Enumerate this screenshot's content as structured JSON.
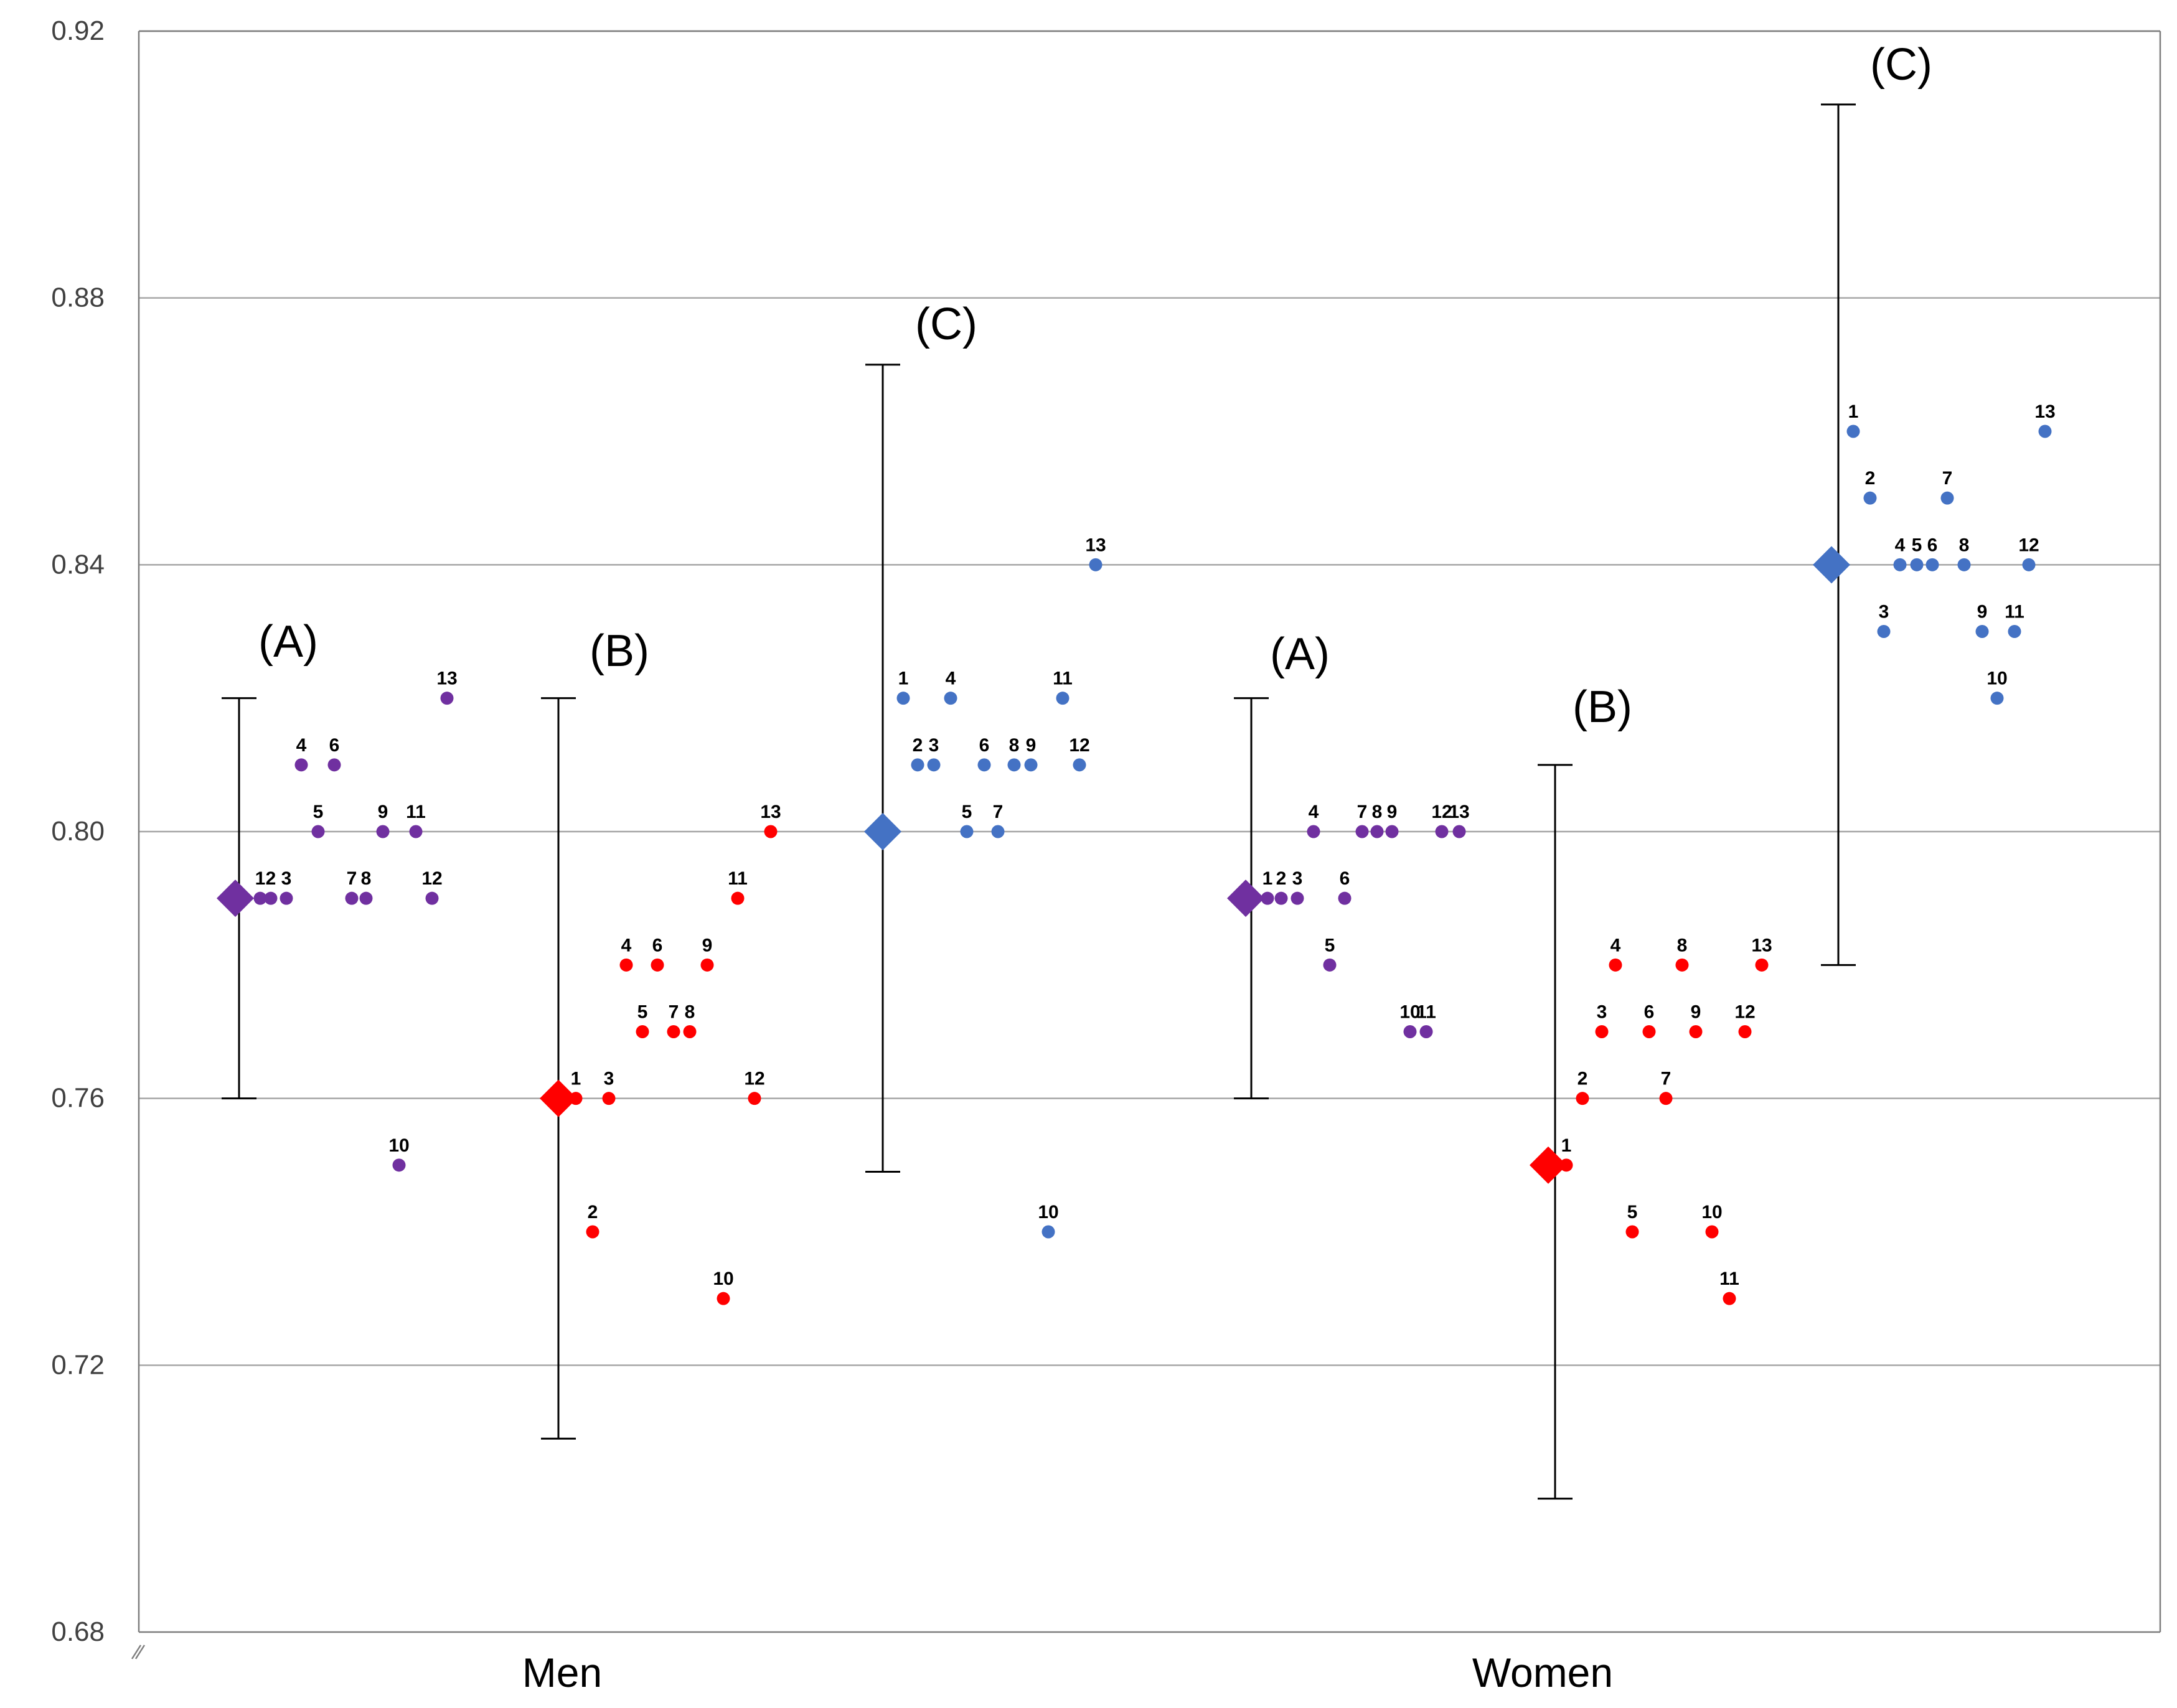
{
  "chart_data": {
    "type": "scatter",
    "title": "",
    "xlabel": "",
    "ylabel": "",
    "ylim": [
      0.68,
      0.92
    ],
    "yticks": [
      "0.68",
      "0.72",
      "0.76",
      "0.80",
      "0.84",
      "0.88",
      "0.92"
    ],
    "grid": true,
    "categories": [
      "Men",
      "Women"
    ],
    "colors": {
      "A": "#7030A0",
      "B": "#FF0000",
      "C": "#4472C4"
    },
    "groups": [
      {
        "category": "Men",
        "label": "(A)",
        "key": "A",
        "mean": 0.79,
        "error_low": 0.76,
        "error_high": 0.82,
        "points": [
          {
            "n": "1",
            "v": 0.79
          },
          {
            "n": "2",
            "v": 0.79
          },
          {
            "n": "3",
            "v": 0.79
          },
          {
            "n": "4",
            "v": 0.81
          },
          {
            "n": "5",
            "v": 0.8
          },
          {
            "n": "6",
            "v": 0.81
          },
          {
            "n": "7",
            "v": 0.79
          },
          {
            "n": "8",
            "v": 0.79
          },
          {
            "n": "9",
            "v": 0.8
          },
          {
            "n": "10",
            "v": 0.75
          },
          {
            "n": "11",
            "v": 0.8
          },
          {
            "n": "12",
            "v": 0.79
          },
          {
            "n": "13",
            "v": 0.82
          }
        ]
      },
      {
        "category": "Men",
        "label": "(B)",
        "key": "B",
        "mean": 0.76,
        "error_low": 0.709,
        "error_high": 0.82,
        "points": [
          {
            "n": "1",
            "v": 0.76
          },
          {
            "n": "2",
            "v": 0.74
          },
          {
            "n": "3",
            "v": 0.76
          },
          {
            "n": "4",
            "v": 0.78
          },
          {
            "n": "5",
            "v": 0.77
          },
          {
            "n": "6",
            "v": 0.78
          },
          {
            "n": "7",
            "v": 0.77
          },
          {
            "n": "8",
            "v": 0.77
          },
          {
            "n": "9",
            "v": 0.78
          },
          {
            "n": "10",
            "v": 0.73
          },
          {
            "n": "11",
            "v": 0.79
          },
          {
            "n": "12",
            "v": 0.76
          },
          {
            "n": "13",
            "v": 0.8
          }
        ]
      },
      {
        "category": "Men",
        "label": "(C)",
        "key": "C",
        "mean": 0.8,
        "error_low": 0.749,
        "error_high": 0.87,
        "points": [
          {
            "n": "1",
            "v": 0.82
          },
          {
            "n": "2",
            "v": 0.81
          },
          {
            "n": "3",
            "v": 0.81
          },
          {
            "n": "4",
            "v": 0.82
          },
          {
            "n": "5",
            "v": 0.8
          },
          {
            "n": "6",
            "v": 0.81
          },
          {
            "n": "7",
            "v": 0.8
          },
          {
            "n": "8",
            "v": 0.81
          },
          {
            "n": "9",
            "v": 0.81
          },
          {
            "n": "10",
            "v": 0.74
          },
          {
            "n": "11",
            "v": 0.82
          },
          {
            "n": "12",
            "v": 0.81
          },
          {
            "n": "13",
            "v": 0.84
          }
        ]
      },
      {
        "category": "Women",
        "label": "(A)",
        "key": "A",
        "mean": 0.79,
        "error_low": 0.76,
        "error_high": 0.82,
        "points": [
          {
            "n": "1",
            "v": 0.79
          },
          {
            "n": "2",
            "v": 0.79
          },
          {
            "n": "3",
            "v": 0.79
          },
          {
            "n": "4",
            "v": 0.8
          },
          {
            "n": "5",
            "v": 0.78
          },
          {
            "n": "6",
            "v": 0.79
          },
          {
            "n": "7",
            "v": 0.8
          },
          {
            "n": "8",
            "v": 0.8
          },
          {
            "n": "9",
            "v": 0.8
          },
          {
            "n": "10",
            "v": 0.77
          },
          {
            "n": "11",
            "v": 0.77
          },
          {
            "n": "12",
            "v": 0.8
          },
          {
            "n": "13",
            "v": 0.8
          }
        ]
      },
      {
        "category": "Women",
        "label": "(B)",
        "key": "B",
        "mean": 0.75,
        "error_low": 0.7,
        "error_high": 0.81,
        "points": [
          {
            "n": "1",
            "v": 0.75
          },
          {
            "n": "2",
            "v": 0.76
          },
          {
            "n": "3",
            "v": 0.77
          },
          {
            "n": "4",
            "v": 0.78
          },
          {
            "n": "5",
            "v": 0.74
          },
          {
            "n": "6",
            "v": 0.77
          },
          {
            "n": "7",
            "v": 0.76
          },
          {
            "n": "8",
            "v": 0.78
          },
          {
            "n": "9",
            "v": 0.77
          },
          {
            "n": "10",
            "v": 0.74
          },
          {
            "n": "11",
            "v": 0.73
          },
          {
            "n": "12",
            "v": 0.77
          },
          {
            "n": "13",
            "v": 0.78
          }
        ]
      },
      {
        "category": "Women",
        "label": "(C)",
        "key": "C",
        "mean": 0.84,
        "error_low": 0.78,
        "error_high": 0.909,
        "points": [
          {
            "n": "1",
            "v": 0.86
          },
          {
            "n": "2",
            "v": 0.85
          },
          {
            "n": "3",
            "v": 0.83
          },
          {
            "n": "4",
            "v": 0.84
          },
          {
            "n": "5",
            "v": 0.84
          },
          {
            "n": "6",
            "v": 0.84
          },
          {
            "n": "7",
            "v": 0.85
          },
          {
            "n": "8",
            "v": 0.84
          },
          {
            "n": "9",
            "v": 0.83
          },
          {
            "n": "10",
            "v": 0.82
          },
          {
            "n": "11",
            "v": 0.83
          },
          {
            "n": "12",
            "v": 0.84
          },
          {
            "n": "13",
            "v": 0.86
          }
        ]
      }
    ]
  }
}
